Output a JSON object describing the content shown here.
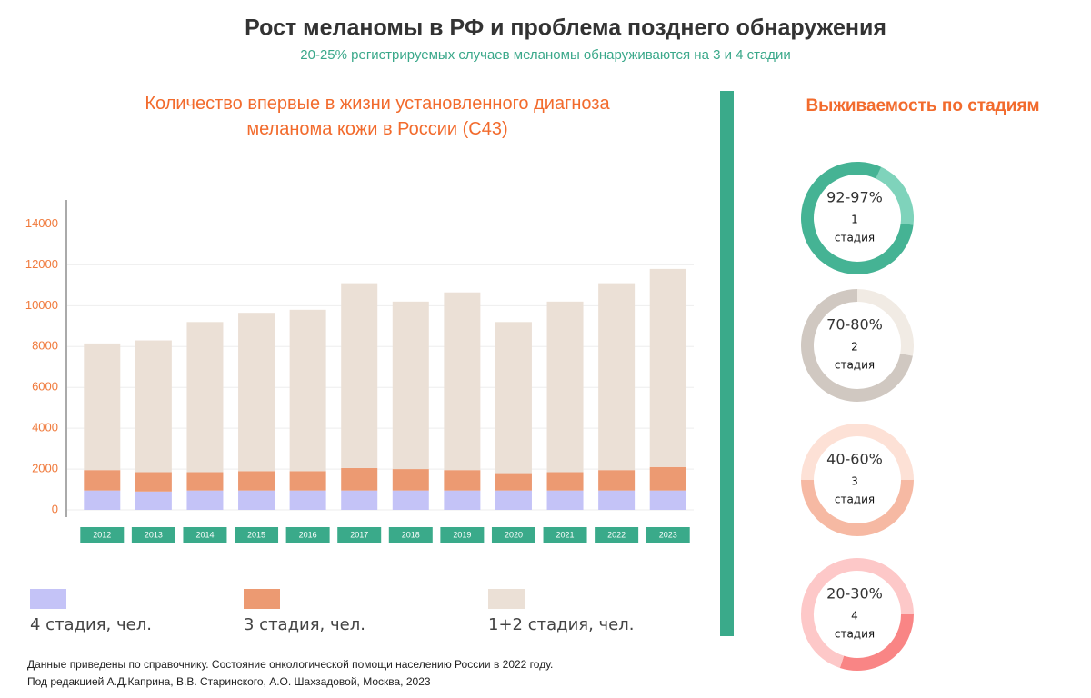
{
  "header": {
    "title": "Рост меланомы   в РФ и проблема позднего обнаружения",
    "subtitle": "20-25% регистрируемых случаев меланомы обнаруживаются на 3 и 4 стадии"
  },
  "survival": {
    "title": "Выживаемость по стадиям"
  },
  "chart_data": [
    {
      "type": "stacked-bar",
      "title": "Количество впервые в жизни установленного диагноза меланома кожи в России (С43)",
      "categories": [
        "2012",
        "2013",
        "2014",
        "2015",
        "2016",
        "2017",
        "2018",
        "2019",
        "2020",
        "2021",
        "2022",
        "2023"
      ],
      "series": [
        {
          "name": "4 стадия, чел.",
          "color": "#c4c3f7",
          "values": [
            950,
            900,
            950,
            950,
            950,
            950,
            950,
            950,
            950,
            950,
            950,
            950
          ]
        },
        {
          "name": "3 стадия, чел.",
          "color": "#ec9a72",
          "values": [
            1000,
            950,
            900,
            950,
            950,
            1100,
            1050,
            1000,
            850,
            900,
            1000,
            1150
          ]
        },
        {
          "name": "1+2 стадия, чел.",
          "color": "#ebe0d6",
          "values": [
            6200,
            6450,
            7350,
            7750,
            7900,
            9050,
            8200,
            8700,
            7400,
            8350,
            9150,
            9700
          ]
        }
      ],
      "ylim": [
        0,
        15000
      ],
      "yticks": [
        0,
        2000,
        4000,
        6000,
        8000,
        10000,
        12000,
        14000
      ],
      "grid": true
    },
    {
      "type": "donut",
      "label": "92-97%",
      "stage": "1",
      "stage_word": "стадия",
      "values": [
        20,
        80
      ],
      "colors": [
        "#7fd3bb",
        "#45b394"
      ]
    },
    {
      "type": "donut",
      "label": "70-80%",
      "stage": "2",
      "stage_word": "стадия",
      "values": [
        28,
        72
      ],
      "colors": [
        "#f1ebe4",
        "#d0c8c1"
      ]
    },
    {
      "type": "donut",
      "label": "40-60%",
      "stage": "3",
      "stage_word": "стадия",
      "values": [
        50,
        50
      ],
      "colors": [
        "#fde1d6",
        "#f6b9a3"
      ]
    },
    {
      "type": "donut",
      "label": "20-30%",
      "stage": "4",
      "stage_word": "стадия",
      "values": [
        30,
        70
      ],
      "colors": [
        "#f98585",
        "#fdc8c8"
      ]
    }
  ],
  "footnote": [
    "Данные приведены по справочнику. Состояние онкологической помощи населению России в 2022 году.",
    "Под редакцией А.Д.Каприна, В.В. Старинского, А.О. Шахзадовой, Москва, 2023"
  ]
}
